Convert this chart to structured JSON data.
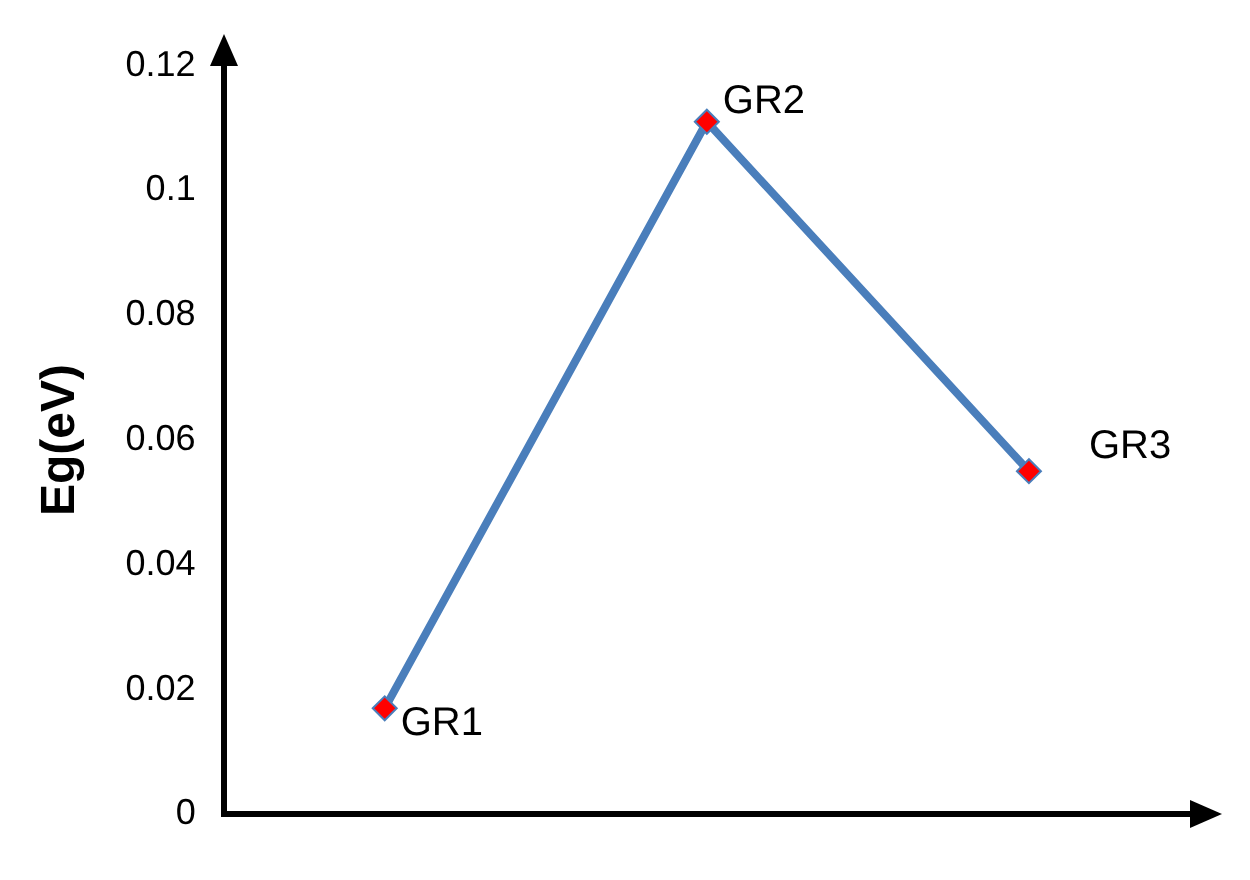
{
  "chart_data": {
    "type": "line",
    "ylabel": "Eg(eV)",
    "categories": [
      "GR1",
      "GR2",
      "GR3"
    ],
    "series": [
      {
        "color": "#4a7ebb",
        "values": [
          0.017,
          0.111,
          0.055
        ]
      }
    ],
    "ylim": [
      0,
      0.12
    ],
    "yticks": [
      0,
      0.02,
      0.04,
      0.06,
      0.08,
      0.1,
      0.12
    ],
    "grid": false,
    "legend": false,
    "marker": "diamond",
    "tick_labels": "y"
  }
}
